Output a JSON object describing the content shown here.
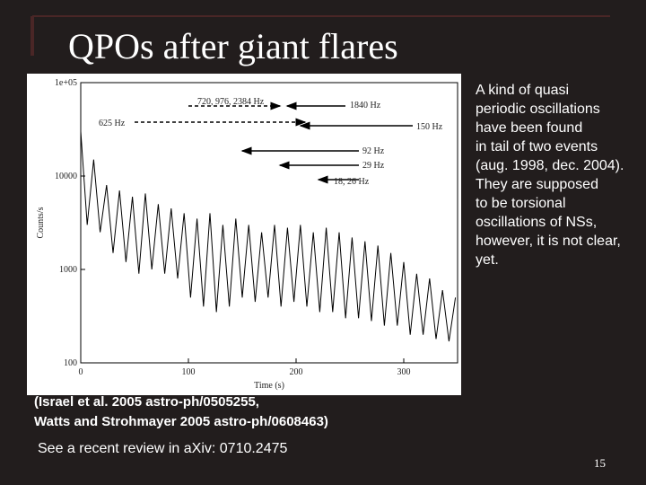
{
  "slide": {
    "title": "QPOs after giant flares",
    "body_lines": [
      "A kind of quasi",
      "periodic oscillations",
      "have been found",
      "in tail of two events",
      "(aug. 1998, dec. 2004).",
      "They are supposed",
      "to be torsional",
      "oscillations of NSs,",
      "however, it is not clear,",
      "yet."
    ],
    "citation_lines": [
      "(Israel et al. 2005 astro-ph/0505255,",
      "Watts and Strohmayer 2005 astro-ph/0608463)"
    ],
    "review": "See a recent review in aXiv: 0710.2475",
    "page_number": "15"
  },
  "figure": {
    "annotations": [
      "720, 976, 2384 Hz",
      "1840 Hz",
      "625 Hz",
      "150 Hz",
      "92 Hz",
      "29 Hz",
      "18, 26 Hz"
    ],
    "chart_data": {
      "type": "line",
      "x_label": "Time (s)",
      "y_label": "Counts/s",
      "log_y": true,
      "color": "#000000",
      "x": [
        0,
        6,
        12,
        18,
        24,
        30,
        36,
        42,
        48,
        54,
        60,
        66,
        72,
        78,
        84,
        90,
        96,
        102,
        108,
        114,
        120,
        126,
        132,
        138,
        144,
        150,
        156,
        162,
        168,
        174,
        180,
        186,
        192,
        198,
        204,
        210,
        216,
        222,
        228,
        234,
        240,
        246,
        252,
        258,
        264,
        270,
        276,
        282,
        288,
        294,
        300,
        306,
        312,
        318,
        324,
        330,
        336,
        342,
        348
      ],
      "values": [
        30000,
        3000,
        15000,
        2500,
        8000,
        1500,
        7000,
        1200,
        6000,
        900,
        6500,
        1000,
        5000,
        900,
        4500,
        800,
        4000,
        500,
        3500,
        400,
        4000,
        350,
        3000,
        400,
        3500,
        500,
        3000,
        450,
        2500,
        500,
        3000,
        400,
        2800,
        450,
        3000,
        400,
        2500,
        350,
        2800,
        350,
        2500,
        300,
        2200,
        300,
        2000,
        280,
        1800,
        250,
        1500,
        250,
        1200,
        200,
        900,
        200,
        800,
        180,
        600,
        170,
        500
      ],
      "xlim": [
        0,
        350
      ],
      "ylim": [
        100,
        100000
      ],
      "xticks": [
        0,
        100,
        200,
        300
      ],
      "yticks": [
        {
          "value": 100000,
          "label": "1e+05"
        },
        10000,
        1000,
        100
      ]
    }
  }
}
